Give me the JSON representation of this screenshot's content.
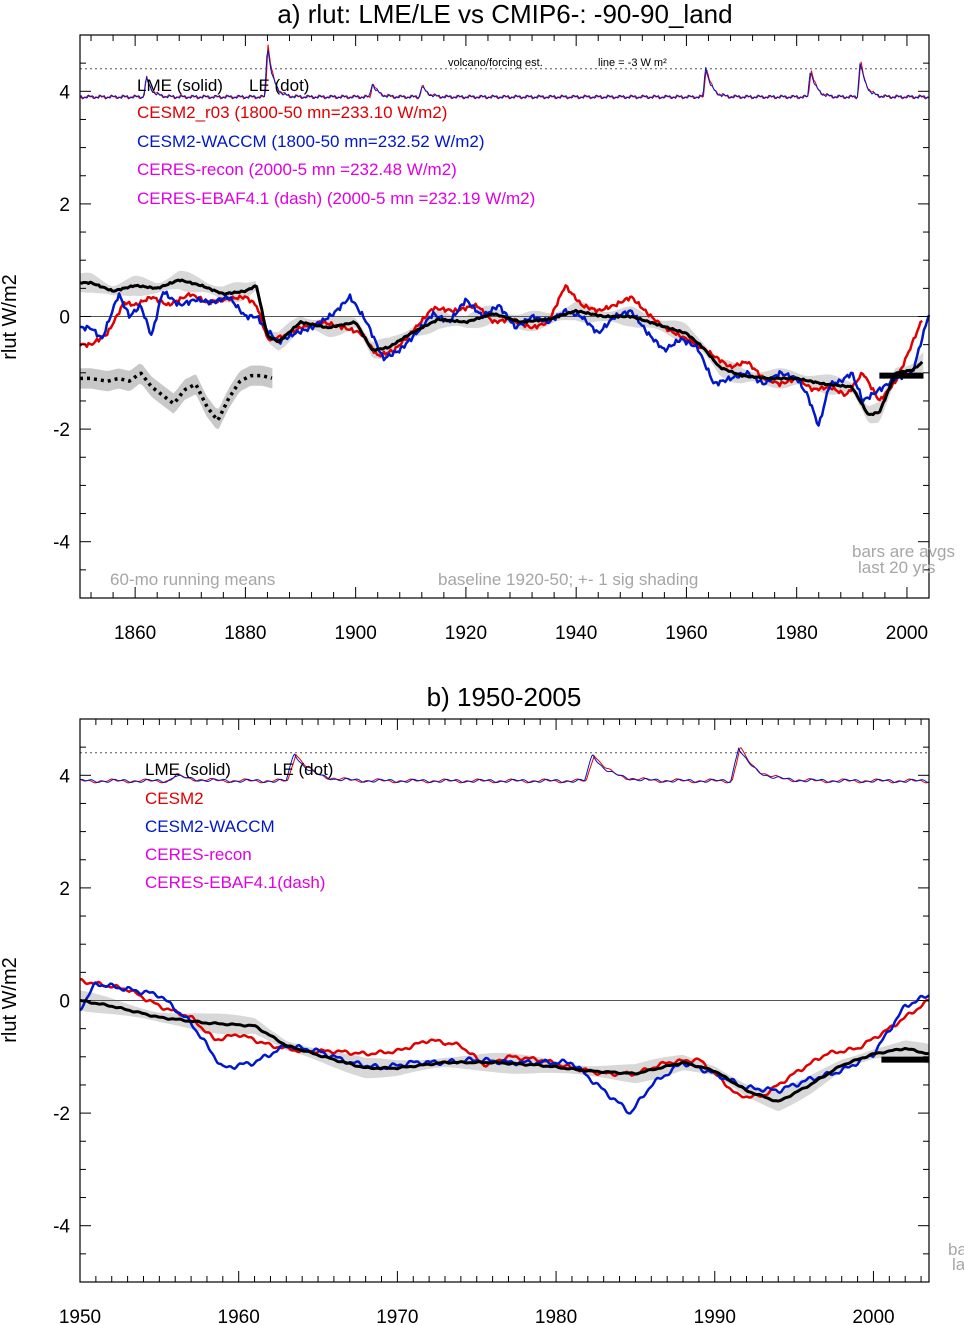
{
  "chart_data": [
    {
      "type": "line",
      "title": "a) rlut: LME/LE vs CMIP6-: -90-90_land",
      "ylabel": "rlut W/m2",
      "xlim": [
        1850,
        2004
      ],
      "ylim": [
        -5,
        5
      ],
      "xticks": [
        1860,
        1880,
        1900,
        1920,
        1940,
        1960,
        1980,
        2000
      ],
      "yticks": [
        -4,
        -2,
        0,
        2,
        4
      ],
      "legend": {
        "line1_a": "LME (solid)",
        "line1_b": "LE (dot)",
        "cesm2": "CESM2_r03 (1800-50 mn=233.10 W/m2)",
        "waccm": "CESM2-WACCM (1800-50 mn=232.52 W/m2)",
        "recon": "CERES-recon (2000-5 mn =232.48 W/m2)",
        "ebaf": "CERES-EBAF4.1 (dash) (2000-5 mn =232.19 W/m2)"
      },
      "notes": {
        "volcano": "volcano/forcing est.",
        "line": "line = -3 W m²",
        "running": "60-mo running means",
        "baseline": "baseline 1920-50; +- 1 sig shading",
        "bars1": "bars are avgs",
        "bars2": "last 20 yrs"
      },
      "colors": {
        "lme": "#000000",
        "cesm2": "#e00000",
        "waccm": "#0018c8",
        "ceres": "#e000e0",
        "shade": "#d8d8d8",
        "zero": "#555555"
      },
      "volcano_reference": 4.4,
      "volcano_baseline": 3.9,
      "volcano_peaks": [
        [
          1862,
          0.35
        ],
        [
          1884,
          0.95
        ],
        [
          1903,
          0.25
        ],
        [
          1912,
          0.2
        ],
        [
          1963.5,
          0.55
        ],
        [
          1982.5,
          0.5
        ],
        [
          1991.5,
          0.65
        ]
      ],
      "lme_bar": {
        "x": [
          1995,
          2003
        ],
        "y": -1.05
      },
      "series": [
        {
          "name": "LME (solid)",
          "x": [
            1850,
            1852,
            1856,
            1860,
            1864,
            1868,
            1872,
            1876,
            1880,
            1882,
            1884,
            1886,
            1890,
            1895,
            1900,
            1903,
            1906,
            1910,
            1915,
            1920,
            1925,
            1930,
            1935,
            1940,
            1945,
            1950,
            1955,
            1960,
            1963,
            1966,
            1970,
            1975,
            1980,
            1985,
            1990,
            1993,
            1995,
            1998,
            2001,
            2003
          ],
          "y": [
            0.6,
            0.6,
            0.45,
            0.55,
            0.5,
            0.65,
            0.55,
            0.4,
            0.45,
            0.55,
            -0.35,
            -0.45,
            -0.1,
            -0.2,
            -0.1,
            -0.6,
            -0.55,
            -0.3,
            -0.05,
            -0.1,
            0.05,
            -0.1,
            -0.05,
            0.1,
            0.0,
            0.0,
            -0.15,
            -0.3,
            -0.55,
            -0.9,
            -1.05,
            -1.1,
            -1.1,
            -1.2,
            -1.25,
            -1.75,
            -1.7,
            -1.0,
            -0.95,
            -0.8
          ]
        },
        {
          "name": "CESM2_r03",
          "x": [
            1850,
            1852,
            1855,
            1858,
            1860,
            1863,
            1866,
            1870,
            1873,
            1876,
            1880,
            1882,
            1884,
            1887,
            1890,
            1894,
            1898,
            1901,
            1904,
            1907,
            1910,
            1914,
            1918,
            1922,
            1925,
            1928,
            1932,
            1935,
            1938,
            1941,
            1944,
            1947,
            1950,
            1953,
            1956,
            1959,
            1962,
            1965,
            1968,
            1971,
            1974,
            1977,
            1980,
            1983,
            1986,
            1989,
            1992,
            1995,
            1998,
            2000,
            2003
          ],
          "y": [
            -0.5,
            -0.5,
            -0.3,
            0.25,
            0.2,
            0.35,
            0.2,
            0.4,
            0.25,
            0.3,
            0.35,
            0.2,
            -0.4,
            -0.35,
            -0.2,
            -0.1,
            -0.2,
            -0.3,
            -0.7,
            -0.6,
            -0.3,
            0.15,
            0.1,
            0.2,
            -0.1,
            -0.05,
            -0.2,
            -0.1,
            0.55,
            0.2,
            0.1,
            0.2,
            0.35,
            0.05,
            -0.2,
            -0.35,
            -0.5,
            -0.7,
            -0.9,
            -0.8,
            -1.1,
            -1.2,
            -1.1,
            -1.3,
            -1.25,
            -1.4,
            -1.0,
            -1.5,
            -1.15,
            -0.7,
            0.0
          ]
        },
        {
          "name": "CESM2-WACCM",
          "x": [
            1850,
            1852,
            1854,
            1857,
            1859,
            1861,
            1863,
            1865,
            1868,
            1871,
            1874,
            1877,
            1880,
            1882,
            1884,
            1886,
            1889,
            1892,
            1896,
            1899,
            1902,
            1905,
            1908,
            1911,
            1914,
            1917,
            1920,
            1923,
            1926,
            1929,
            1932,
            1935,
            1938,
            1941,
            1944,
            1947,
            1950,
            1953,
            1956,
            1959,
            1962,
            1965,
            1968,
            1971,
            1974,
            1977,
            1980,
            1982,
            1984,
            1986,
            1988,
            1990,
            1992,
            1995,
            1998,
            2001,
            2004
          ],
          "y": [
            -0.2,
            -0.2,
            -0.4,
            0.4,
            0.0,
            0.2,
            -0.35,
            0.45,
            0.2,
            0.3,
            0.25,
            0.35,
            0.0,
            0.0,
            -0.25,
            -0.45,
            -0.3,
            -0.2,
            0.05,
            0.35,
            -0.1,
            -0.75,
            -0.6,
            -0.3,
            0.05,
            -0.1,
            0.3,
            0.0,
            0.2,
            -0.2,
            0.0,
            -0.1,
            0.1,
            0.0,
            -0.3,
            0.0,
            0.1,
            -0.3,
            -0.6,
            -0.4,
            -0.55,
            -1.2,
            -1.1,
            -1.0,
            -1.2,
            -1.0,
            -1.1,
            -1.4,
            -1.95,
            -1.2,
            -1.15,
            -1.0,
            -1.5,
            -1.3,
            -1.1,
            -1.0,
            0.05
          ]
        }
      ],
      "le_series": {
        "name": "LE (dot)",
        "x": [
          1850,
          1852,
          1855,
          1857,
          1859,
          1861,
          1863,
          1865,
          1867,
          1869,
          1871,
          1873,
          1875,
          1877,
          1879,
          1881,
          1883,
          1885
        ],
        "y": [
          -1.1,
          -1.1,
          -1.15,
          -1.1,
          -1.15,
          -1.0,
          -1.25,
          -1.4,
          -1.55,
          -1.3,
          -1.2,
          -1.6,
          -1.85,
          -1.45,
          -1.15,
          -1.05,
          -1.05,
          -1.1
        ]
      }
    },
    {
      "type": "line",
      "title": "b) 1950-2005",
      "ylabel": "rlut W/m2",
      "xlim": [
        1950,
        2003.5
      ],
      "ylim": [
        -5,
        5
      ],
      "xticks": [
        1950,
        1960,
        1970,
        1980,
        1990,
        2000
      ],
      "yticks": [
        -4,
        -2,
        0,
        2,
        4
      ],
      "legend": {
        "line1_a": "LME (solid)",
        "line1_b": "LE (dot)",
        "cesm2": "CESM2",
        "waccm": "CESM2-WACCM",
        "recon": "CERES-recon",
        "ebaf": "CERES-EBAF4.1(dash)"
      },
      "notes": {
        "bars1": "ba",
        "bars2": "la"
      },
      "colors": {
        "lme": "#000000",
        "cesm2": "#e00000",
        "waccm": "#0018c8",
        "ceres": "#e000e0",
        "shade": "#d8d8d8",
        "zero": "#555555"
      },
      "volcano_reference": 4.4,
      "volcano_baseline": 3.9,
      "volcano_peaks": [
        [
          1956,
          0.1
        ],
        [
          1963.5,
          0.5
        ],
        [
          1982.3,
          0.48
        ],
        [
          1991.5,
          0.6
        ]
      ],
      "lme_bar": {
        "x": [
          2000.5,
          2003.5
        ],
        "y": -1.05
      },
      "series": [
        {
          "name": "LME (solid)",
          "x": [
            1950,
            1952,
            1955,
            1958,
            1961,
            1963,
            1966,
            1968,
            1970,
            1973,
            1976,
            1979,
            1982,
            1985,
            1988,
            1990,
            1992,
            1994,
            1996,
            1998,
            2000,
            2002,
            2003.5
          ],
          "y": [
            0.0,
            -0.1,
            -0.3,
            -0.4,
            -0.45,
            -0.8,
            -1.05,
            -1.2,
            -1.2,
            -1.1,
            -1.1,
            -1.15,
            -1.25,
            -1.3,
            -1.1,
            -1.25,
            -1.6,
            -1.8,
            -1.5,
            -1.15,
            -0.95,
            -0.85,
            -0.95
          ]
        },
        {
          "name": "CESM2",
          "x": [
            1950,
            1951,
            1953,
            1955,
            1957,
            1958.5,
            1960,
            1962,
            1964,
            1966,
            1968,
            1970,
            1972,
            1974,
            1975.5,
            1977,
            1979,
            1981,
            1983,
            1985,
            1987,
            1989,
            1990,
            1991.5,
            1993,
            1995,
            1997,
            1999,
            2001,
            2003.5
          ],
          "y": [
            0.35,
            0.3,
            0.2,
            -0.1,
            -0.3,
            -0.7,
            -0.6,
            -0.8,
            -0.9,
            -0.9,
            -0.95,
            -0.9,
            -0.7,
            -0.8,
            -1.15,
            -1.0,
            -1.05,
            -1.2,
            -1.3,
            -1.3,
            -1.1,
            -1.05,
            -1.3,
            -1.7,
            -1.7,
            -1.3,
            -0.95,
            -0.85,
            -0.5,
            0.0
          ]
        },
        {
          "name": "CESM2-WACCM",
          "x": [
            1950,
            1951,
            1953,
            1955,
            1957,
            1959,
            1961,
            1963,
            1965,
            1967,
            1969,
            1971,
            1973,
            1975,
            1977,
            1979,
            1981,
            1983,
            1984.7,
            1986,
            1988,
            1990,
            1992,
            1994,
            1996,
            1998,
            2000,
            2002,
            2003.5
          ],
          "y": [
            -0.15,
            0.3,
            0.2,
            0.1,
            -0.4,
            -1.2,
            -1.1,
            -0.8,
            -0.9,
            -1.1,
            -1.2,
            -1.1,
            -1.1,
            -1.05,
            -1.1,
            -1.1,
            -1.1,
            -1.6,
            -2.0,
            -1.5,
            -1.1,
            -1.3,
            -1.55,
            -1.6,
            -1.4,
            -1.25,
            -0.95,
            -0.1,
            0.1
          ]
        }
      ],
      "le_series": null
    }
  ]
}
